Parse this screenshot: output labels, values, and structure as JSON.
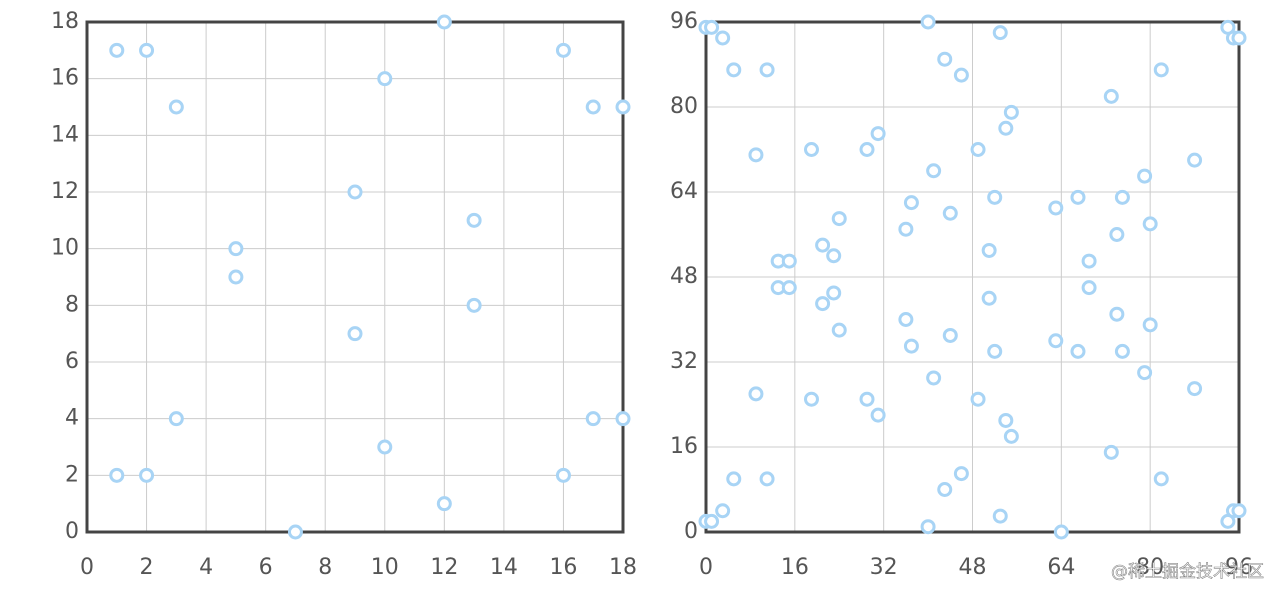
{
  "chart_data": [
    {
      "type": "scatter",
      "color": "#a8d4f5",
      "grid": true,
      "xlim": [
        0,
        18
      ],
      "ylim": [
        0,
        18
      ],
      "xticks": [
        0,
        2,
        4,
        6,
        8,
        10,
        12,
        14,
        16,
        18
      ],
      "yticks": [
        0,
        2,
        4,
        6,
        8,
        10,
        12,
        14,
        16,
        18
      ],
      "x": [
        1,
        2,
        3,
        5,
        5,
        1,
        2,
        3,
        7,
        9,
        9,
        10,
        10,
        12,
        12,
        13,
        13,
        16,
        16,
        17,
        17,
        18,
        18
      ],
      "values": [
        17,
        17,
        15,
        10,
        9,
        2,
        2,
        4,
        0,
        12,
        7,
        16,
        3,
        18,
        1,
        11,
        8,
        17,
        2,
        15,
        4,
        15,
        4
      ]
    },
    {
      "type": "scatter",
      "color": "#a8d4f5",
      "grid": true,
      "xlim": [
        0,
        96
      ],
      "ylim": [
        0,
        96
      ],
      "xticks": [
        0,
        16,
        32,
        48,
        64,
        80,
        96
      ],
      "yticks": [
        0,
        16,
        32,
        48,
        64,
        80,
        96
      ],
      "x": [
        0,
        1,
        3,
        5,
        11,
        9,
        19,
        29,
        31,
        40,
        43,
        46,
        53,
        49,
        54,
        55,
        41,
        37,
        36,
        44,
        52,
        24,
        21,
        23,
        13,
        15,
        13,
        15,
        21,
        23,
        24,
        36,
        37,
        44,
        51,
        51,
        52,
        41,
        9,
        19,
        29,
        31,
        49,
        54,
        55,
        5,
        11,
        0,
        1,
        3,
        40,
        43,
        46,
        53,
        64,
        63,
        67,
        75,
        74,
        69,
        69,
        79,
        80,
        73,
        82,
        88,
        94,
        95,
        96,
        63,
        67,
        74,
        75,
        80,
        79,
        73,
        82,
        88,
        94,
        95,
        96
      ],
      "values": [
        95,
        95,
        93,
        87,
        87,
        71,
        72,
        72,
        75,
        96,
        89,
        86,
        94,
        72,
        76,
        79,
        68,
        62,
        57,
        60,
        63,
        59,
        54,
        52,
        51,
        51,
        46,
        46,
        43,
        45,
        38,
        40,
        35,
        37,
        53,
        44,
        34,
        29,
        26,
        25,
        25,
        22,
        25,
        21,
        18,
        10,
        10,
        2,
        2,
        4,
        1,
        8,
        11,
        3,
        0,
        61,
        63,
        63,
        56,
        51,
        46,
        67,
        58,
        82,
        87,
        70,
        95,
        93,
        93,
        36,
        34,
        41,
        34,
        39,
        30,
        15,
        10,
        27,
        2,
        4,
        4
      ]
    }
  ],
  "watermark": "@稀土掘金技术社区"
}
